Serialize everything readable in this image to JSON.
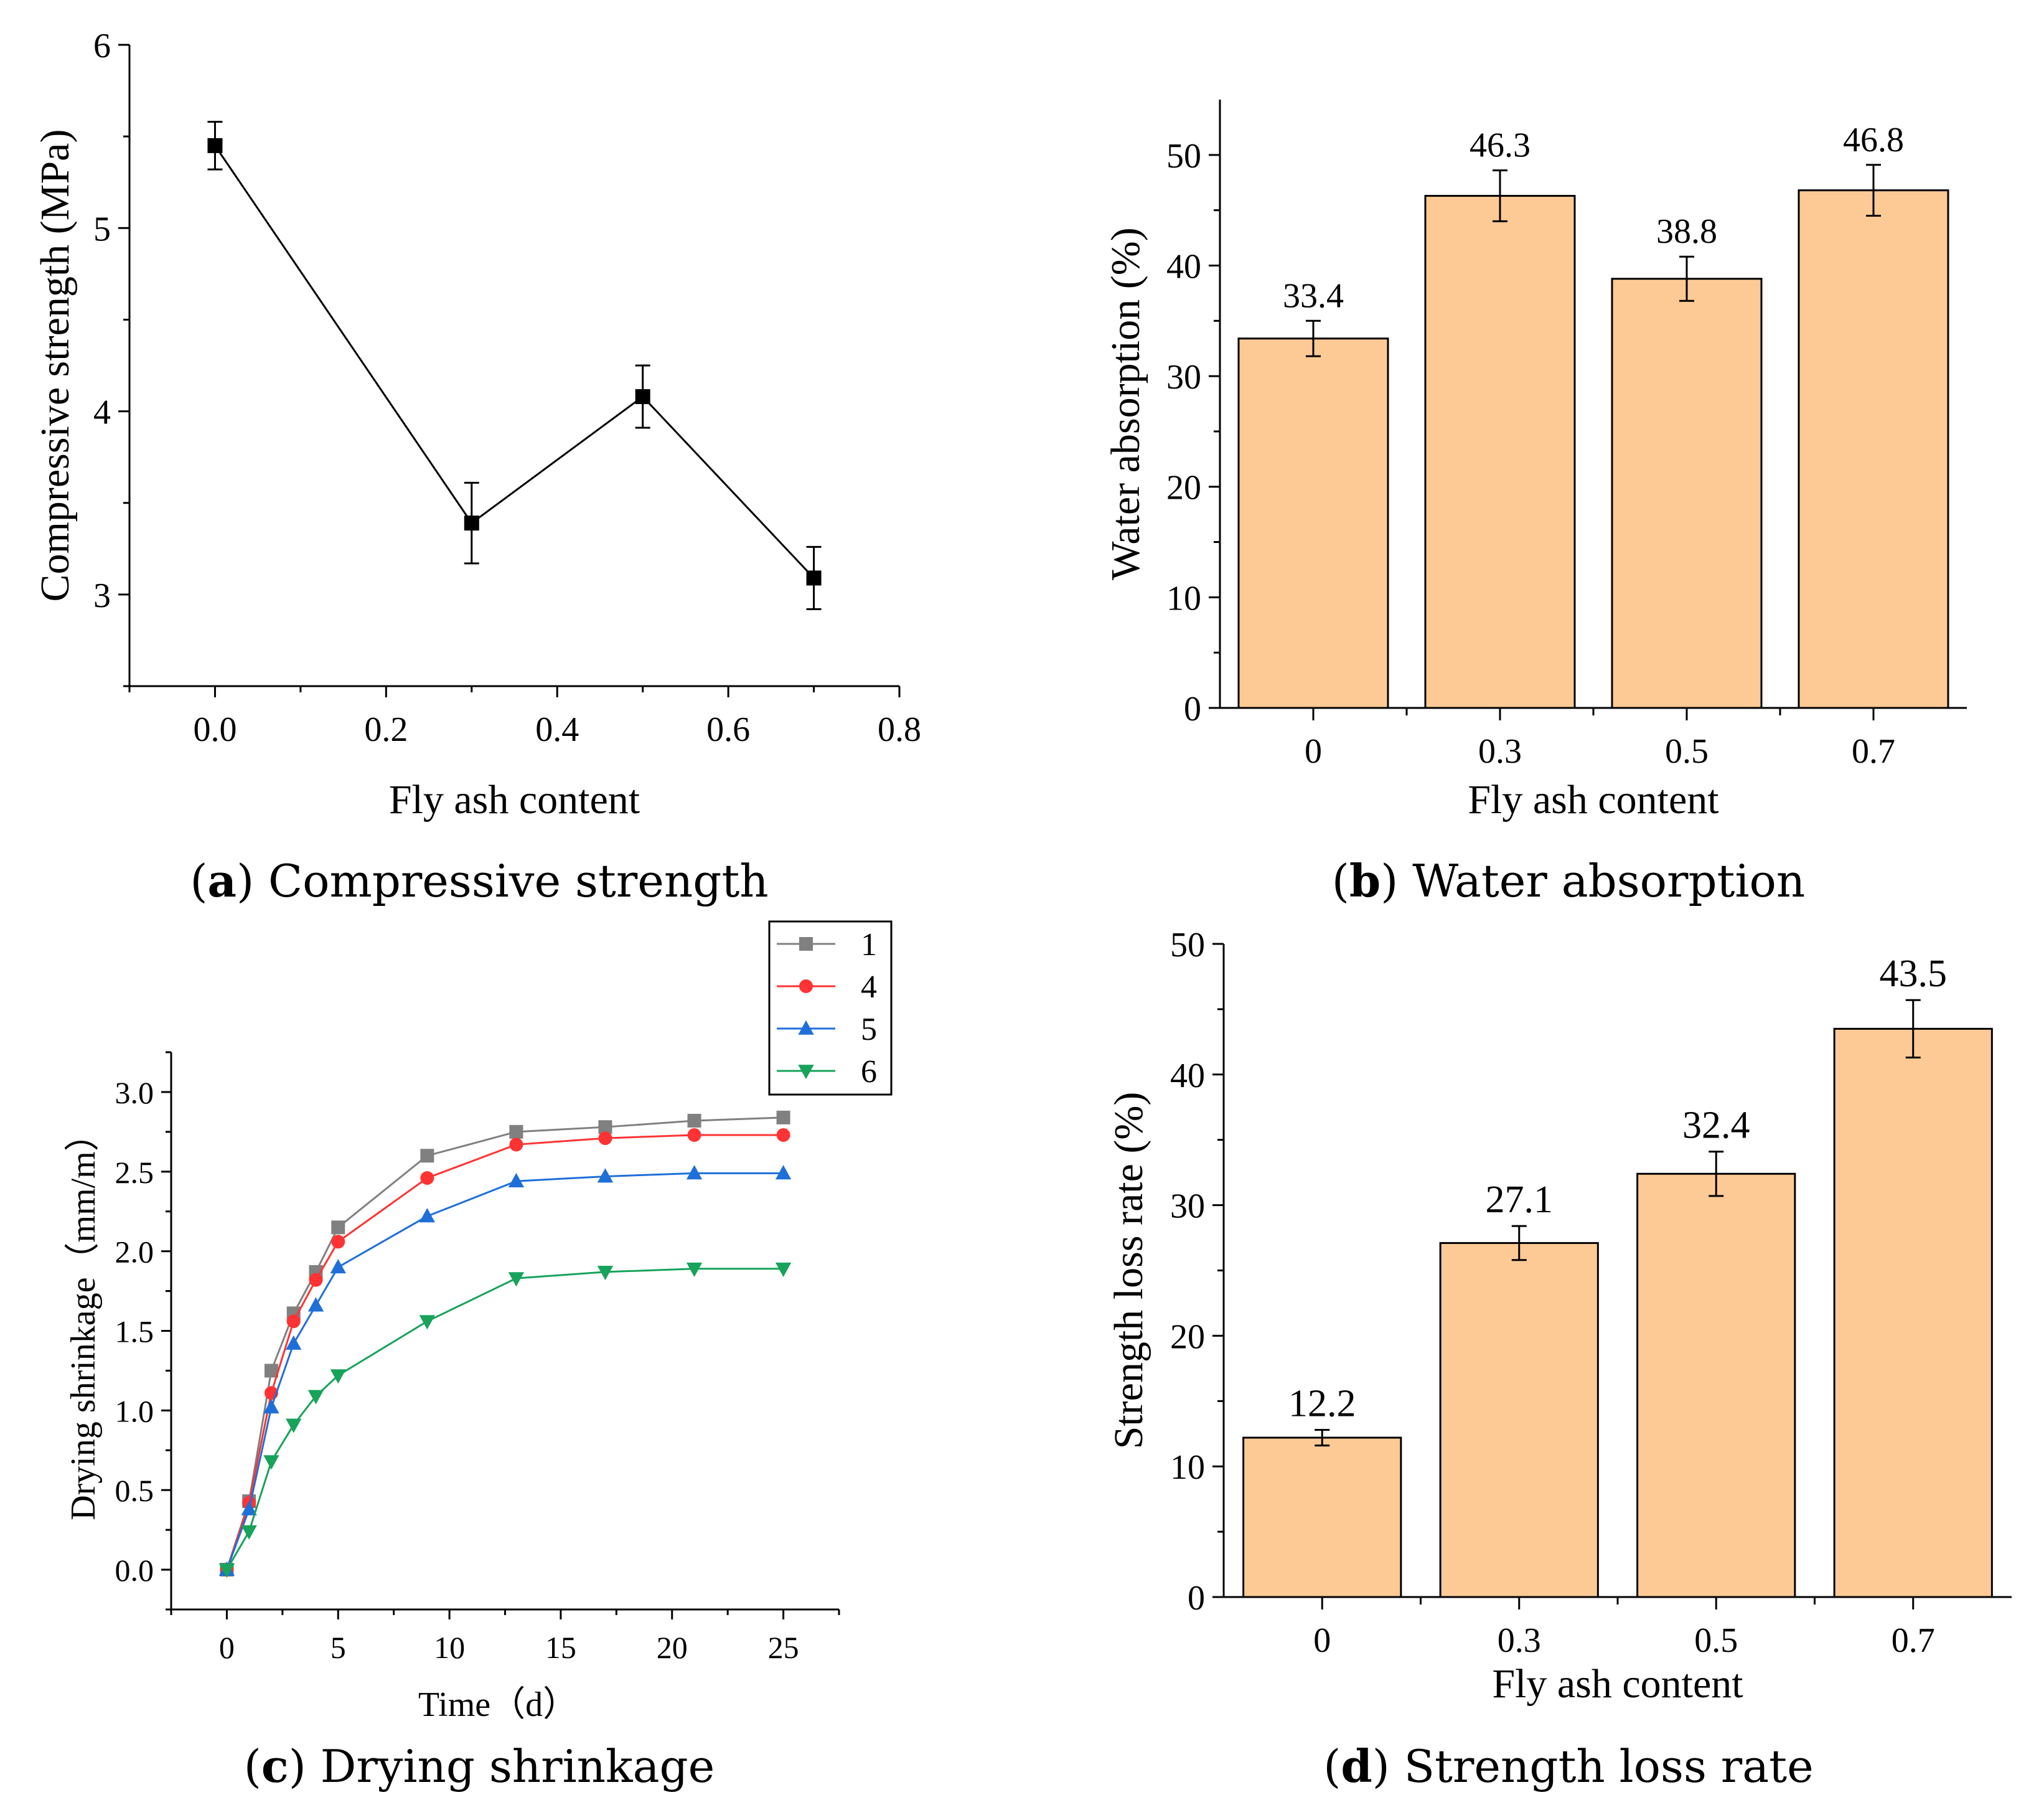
{
  "figure": {
    "colors": {
      "bar_fill": "#fdca96",
      "axis": "#000000"
    }
  },
  "chart_data": [
    {
      "id": "a",
      "type": "line",
      "caption_letter": "a",
      "caption_text": "Compressive strength",
      "xlabel": "Fly ash content",
      "ylabel": "Compressive strength (MPa)",
      "xlim": [
        -0.1,
        0.8
      ],
      "ylim": [
        2.5,
        6
      ],
      "xticks": [
        0.0,
        0.2,
        0.4,
        0.6,
        0.8
      ],
      "xtick_labels": [
        "0.0",
        "0.2",
        "0.4",
        "0.6",
        "0.8"
      ],
      "yticks": [
        3,
        4,
        5,
        6
      ],
      "ytick_labels": [
        "3",
        "4",
        "5",
        "6"
      ],
      "x": [
        0.0,
        0.3,
        0.5,
        0.7
      ],
      "y": [
        5.45,
        3.39,
        4.08,
        3.09
      ],
      "err": [
        0.13,
        0.22,
        0.17,
        0.17
      ]
    },
    {
      "id": "b",
      "type": "bar",
      "caption_letter": "b",
      "caption_text": "Water absorption",
      "xlabel": "Fly ash content",
      "ylabel": "Water absorption (%)",
      "ylim": [
        0,
        55
      ],
      "categories": [
        "0",
        "0.3",
        "0.5",
        "0.7"
      ],
      "values": [
        33.4,
        46.3,
        38.8,
        46.8
      ],
      "labels": [
        "33.4",
        "46.3",
        "38.8",
        "46.8"
      ],
      "err": [
        1.6,
        2.3,
        2.0,
        2.3
      ],
      "yticks": [
        0,
        10,
        20,
        30,
        40,
        50
      ],
      "ytick_labels": [
        "0",
        "10",
        "20",
        "30",
        "40",
        "50"
      ]
    },
    {
      "id": "c",
      "type": "line",
      "caption_letter": "c",
      "caption_text": "Drying shrinkage",
      "xlabel": "Time（d）",
      "ylabel": "Drying shrinkage（mm/m）",
      "xlim": [
        -2.5,
        27.5
      ],
      "ylim": [
        -0.25,
        3.25
      ],
      "xticks": [
        0,
        5,
        10,
        15,
        20,
        25
      ],
      "xtick_labels": [
        "0",
        "5",
        "10",
        "15",
        "20",
        "25"
      ],
      "yticks": [
        0,
        0.5,
        1.0,
        1.5,
        2.0,
        2.5,
        3.0
      ],
      "ytick_labels": [
        "0.0",
        "0.5",
        "1.0",
        "1.5",
        "2.0",
        "2.5",
        "3.0"
      ],
      "legend_position": "top-right",
      "x": [
        0,
        1,
        2,
        3,
        4,
        5,
        9,
        13,
        17,
        21,
        25
      ],
      "series": [
        {
          "name": "1",
          "color": "#808080",
          "marker": "square",
          "values": [
            0,
            0.43,
            1.25,
            1.61,
            1.87,
            2.15,
            2.6,
            2.75,
            2.78,
            2.82,
            2.84
          ]
        },
        {
          "name": "4",
          "color": "#ff3333",
          "marker": "circle",
          "values": [
            0,
            0.42,
            1.11,
            1.56,
            1.82,
            2.06,
            2.46,
            2.67,
            2.71,
            2.73,
            2.73
          ]
        },
        {
          "name": "5",
          "color": "#1f6fd8",
          "marker": "triangle-up",
          "values": [
            0,
            0.38,
            1.02,
            1.42,
            1.66,
            1.9,
            2.22,
            2.44,
            2.47,
            2.49,
            2.49
          ]
        },
        {
          "name": "6",
          "color": "#17a35a",
          "marker": "triangle-down",
          "values": [
            0,
            0.24,
            0.68,
            0.91,
            1.09,
            1.22,
            1.56,
            1.83,
            1.87,
            1.89,
            1.89
          ]
        }
      ]
    },
    {
      "id": "d",
      "type": "bar",
      "caption_letter": "d",
      "caption_text": "Strength loss rate",
      "xlabel": "Fly ash content",
      "ylabel": "Strength loss rate (%)",
      "ylim": [
        0,
        50
      ],
      "categories": [
        "0",
        "0.3",
        "0.5",
        "0.7"
      ],
      "values": [
        12.2,
        27.1,
        32.4,
        43.5
      ],
      "labels": [
        "12.2",
        "27.1",
        "32.4",
        "43.5"
      ],
      "err": [
        0.6,
        1.3,
        1.7,
        2.2
      ],
      "yticks": [
        0,
        10,
        20,
        30,
        40,
        50
      ],
      "ytick_labels": [
        "0",
        "10",
        "20",
        "30",
        "40",
        "50"
      ]
    }
  ]
}
